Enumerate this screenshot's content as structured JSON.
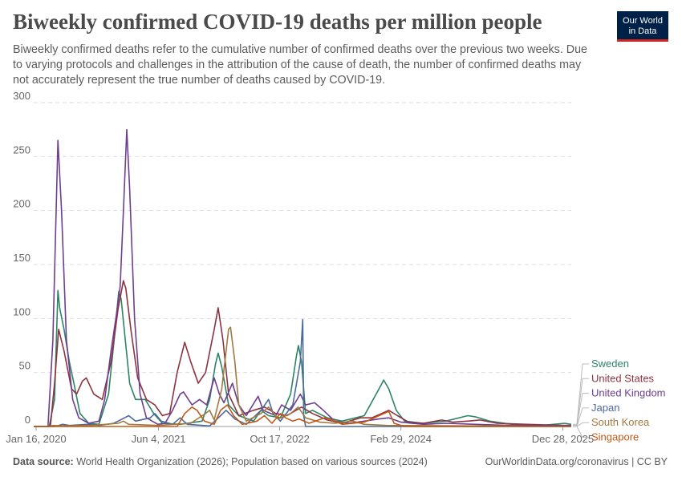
{
  "header": {
    "title": "Biweekly confirmed COVID-19 deaths per million people",
    "subtitle": "Biweekly confirmed deaths refer to the cumulative number of confirmed deaths over the previous two weeks. Due to varying protocols and challenges in the attribution of the cause of death, the number of confirmed deaths may not accurately represent the true number of deaths caused by COVID-19.",
    "logo_line1": "Our World",
    "logo_line2": "in Data"
  },
  "footer": {
    "source_label": "Data source:",
    "source_text": "World Health Organization (2026); Population based on various sources (2024)",
    "credit": "OurWorldinData.org/coronavirus | CC BY"
  },
  "chart_data": {
    "type": "line",
    "title": "Biweekly confirmed COVID-19 deaths per million people",
    "xlabel": "",
    "ylabel": "",
    "ylim": [
      0,
      300
    ],
    "xlim": [
      "2020-01-06",
      "2026-02-01"
    ],
    "y_ticks": [
      0,
      50,
      100,
      150,
      200,
      250,
      300
    ],
    "x_ticks": [
      {
        "date": "2020-01-16",
        "label": "Jan 16, 2020"
      },
      {
        "date": "2021-06-04",
        "label": "Jun 4, 2021"
      },
      {
        "date": "2022-10-17",
        "label": "Oct 17, 2022"
      },
      {
        "date": "2024-02-29",
        "label": "Feb 29, 2024"
      },
      {
        "date": "2025-12-28",
        "label": "Dec 28, 2025"
      }
    ],
    "grid": true,
    "legend_placement": "right",
    "series": [
      {
        "name": "Sweden",
        "color": "#2c8465",
        "points": [
          [
            "2020-01-06",
            0
          ],
          [
            "2020-03-10",
            0
          ],
          [
            "2020-04-01",
            25
          ],
          [
            "2020-04-15",
            126
          ],
          [
            "2020-04-22",
            110
          ],
          [
            "2020-05-10",
            90
          ],
          [
            "2020-06-01",
            60
          ],
          [
            "2020-06-20",
            40
          ],
          [
            "2020-07-15",
            12
          ],
          [
            "2020-08-20",
            3
          ],
          [
            "2020-10-01",
            2
          ],
          [
            "2020-11-10",
            30
          ],
          [
            "2020-12-05",
            85
          ],
          [
            "2020-12-22",
            125
          ],
          [
            "2021-01-01",
            118
          ],
          [
            "2021-01-18",
            80
          ],
          [
            "2021-02-05",
            40
          ],
          [
            "2021-03-01",
            25
          ],
          [
            "2021-04-10",
            25
          ],
          [
            "2021-05-15",
            12
          ],
          [
            "2021-06-20",
            3
          ],
          [
            "2021-09-01",
            2
          ],
          [
            "2021-12-01",
            5
          ],
          [
            "2022-01-01",
            25
          ],
          [
            "2022-01-25",
            58
          ],
          [
            "2022-02-05",
            68
          ],
          [
            "2022-02-20",
            55
          ],
          [
            "2022-03-20",
            20
          ],
          [
            "2022-05-01",
            10
          ],
          [
            "2022-07-01",
            5
          ],
          [
            "2022-08-01",
            15
          ],
          [
            "2022-09-01",
            10
          ],
          [
            "2022-10-20",
            8
          ],
          [
            "2022-12-01",
            30
          ],
          [
            "2022-12-25",
            65
          ],
          [
            "2023-01-02",
            75
          ],
          [
            "2023-01-15",
            60
          ],
          [
            "2023-02-01",
            12
          ],
          [
            "2023-03-01",
            15
          ],
          [
            "2023-05-01",
            8
          ],
          [
            "2023-07-01",
            5
          ],
          [
            "2023-10-01",
            10
          ],
          [
            "2023-12-01",
            35
          ],
          [
            "2023-12-20",
            43
          ],
          [
            "2024-01-10",
            35
          ],
          [
            "2024-02-10",
            15
          ],
          [
            "2024-03-15",
            5
          ],
          [
            "2024-06-01",
            3
          ],
          [
            "2024-09-01",
            5
          ],
          [
            "2024-12-01",
            10
          ],
          [
            "2025-01-01",
            9
          ],
          [
            "2025-03-01",
            5
          ],
          [
            "2025-06-01",
            2
          ],
          [
            "2025-10-01",
            1
          ],
          [
            "2026-01-05",
            3
          ],
          [
            "2026-02-01",
            2
          ]
        ]
      },
      {
        "name": "United States",
        "color": "#8c3340",
        "points": [
          [
            "2020-01-06",
            0
          ],
          [
            "2020-03-15",
            0
          ],
          [
            "2020-04-01",
            40
          ],
          [
            "2020-04-18",
            90
          ],
          [
            "2020-05-10",
            70
          ],
          [
            "2020-06-10",
            35
          ],
          [
            "2020-07-01",
            30
          ],
          [
            "2020-07-25",
            42
          ],
          [
            "2020-08-10",
            45
          ],
          [
            "2020-09-10",
            30
          ],
          [
            "2020-10-15",
            25
          ],
          [
            "2020-11-20",
            60
          ],
          [
            "2020-12-20",
            110
          ],
          [
            "2021-01-10",
            135
          ],
          [
            "2021-01-20",
            128
          ],
          [
            "2021-02-10",
            90
          ],
          [
            "2021-03-10",
            45
          ],
          [
            "2021-04-15",
            25
          ],
          [
            "2021-05-20",
            20
          ],
          [
            "2021-06-20",
            10
          ],
          [
            "2021-07-20",
            12
          ],
          [
            "2021-08-20",
            50
          ],
          [
            "2021-09-20",
            78
          ],
          [
            "2021-10-15",
            60
          ],
          [
            "2021-11-15",
            40
          ],
          [
            "2021-12-15",
            50
          ],
          [
            "2022-01-20",
            90
          ],
          [
            "2022-02-05",
            110
          ],
          [
            "2022-02-25",
            80
          ],
          [
            "2022-03-20",
            30
          ],
          [
            "2022-05-01",
            10
          ],
          [
            "2022-07-01",
            15
          ],
          [
            "2022-08-15",
            18
          ],
          [
            "2022-10-01",
            12
          ],
          [
            "2022-11-15",
            10
          ],
          [
            "2023-01-15",
            18
          ],
          [
            "2023-03-01",
            12
          ],
          [
            "2023-05-01",
            6
          ],
          [
            "2023-07-01",
            3
          ],
          [
            "2023-09-15",
            8
          ],
          [
            "2023-11-01",
            8
          ],
          [
            "2024-01-10",
            15
          ],
          [
            "2024-02-15",
            10
          ],
          [
            "2024-04-01",
            4
          ],
          [
            "2024-06-01",
            3
          ],
          [
            "2024-08-15",
            6
          ],
          [
            "2024-10-01",
            4
          ],
          [
            "2024-12-01",
            5
          ],
          [
            "2025-01-20",
            6
          ],
          [
            "2025-04-01",
            3
          ],
          [
            "2025-08-01",
            2
          ],
          [
            "2026-01-01",
            1
          ],
          [
            "2026-02-01",
            1
          ]
        ]
      },
      {
        "name": "United Kingdom",
        "color": "#6d3e91",
        "points": [
          [
            "2020-01-06",
            0
          ],
          [
            "2020-03-05",
            0
          ],
          [
            "2020-03-25",
            80
          ],
          [
            "2020-04-15",
            265
          ],
          [
            "2020-04-30",
            200
          ],
          [
            "2020-05-20",
            80
          ],
          [
            "2020-06-15",
            25
          ],
          [
            "2020-07-10",
            8
          ],
          [
            "2020-08-20",
            3
          ],
          [
            "2020-10-01",
            5
          ],
          [
            "2020-10-25",
            25
          ],
          [
            "2020-11-20",
            70
          ],
          [
            "2020-12-10",
            100
          ],
          [
            "2020-12-28",
            130
          ],
          [
            "2021-01-12",
            210
          ],
          [
            "2021-01-24",
            275
          ],
          [
            "2021-02-05",
            220
          ],
          [
            "2021-02-25",
            100
          ],
          [
            "2021-03-20",
            30
          ],
          [
            "2021-04-15",
            8
          ],
          [
            "2021-06-01",
            2
          ],
          [
            "2021-07-01",
            3
          ],
          [
            "2021-08-01",
            15
          ],
          [
            "2021-09-01",
            30
          ],
          [
            "2021-09-15",
            32
          ],
          [
            "2021-10-20",
            20
          ],
          [
            "2021-11-20",
            25
          ],
          [
            "2021-12-20",
            20
          ],
          [
            "2022-01-20",
            45
          ],
          [
            "2022-02-10",
            30
          ],
          [
            "2022-03-01",
            22
          ],
          [
            "2022-04-05",
            40
          ],
          [
            "2022-05-01",
            20
          ],
          [
            "2022-06-01",
            10
          ],
          [
            "2022-07-20",
            28
          ],
          [
            "2022-08-10",
            15
          ],
          [
            "2022-10-01",
            10
          ],
          [
            "2022-10-25",
            20
          ],
          [
            "2022-12-01",
            15
          ],
          [
            "2023-01-10",
            30
          ],
          [
            "2023-02-01",
            20
          ],
          [
            "2023-03-10",
            22
          ],
          [
            "2023-04-15",
            15
          ],
          [
            "2023-06-01",
            5
          ],
          [
            "2023-08-01",
            3
          ],
          [
            "2023-10-01",
            5
          ],
          [
            "2023-12-01",
            7
          ],
          [
            "2024-01-10",
            8
          ],
          [
            "2024-03-01",
            4
          ],
          [
            "2024-06-01",
            2
          ],
          [
            "2024-09-01",
            3
          ],
          [
            "2025-01-01",
            2
          ],
          [
            "2025-06-01",
            1
          ],
          [
            "2026-02-01",
            1
          ]
        ]
      },
      {
        "name": "Japan",
        "color": "#4c6a9c",
        "points": [
          [
            "2020-01-06",
            0
          ],
          [
            "2020-04-01",
            0
          ],
          [
            "2020-05-05",
            2
          ],
          [
            "2020-06-01",
            1
          ],
          [
            "2020-08-15",
            2
          ],
          [
            "2020-10-01",
            1
          ],
          [
            "2020-12-01",
            3
          ],
          [
            "2021-01-15",
            8
          ],
          [
            "2021-02-01",
            10
          ],
          [
            "2021-03-01",
            5
          ],
          [
            "2021-05-01",
            8
          ],
          [
            "2021-05-20",
            12
          ],
          [
            "2021-06-15",
            5
          ],
          [
            "2021-08-01",
            2
          ],
          [
            "2021-09-01",
            8
          ],
          [
            "2021-10-01",
            2
          ],
          [
            "2022-01-01",
            0.5
          ],
          [
            "2022-02-15",
            10
          ],
          [
            "2022-03-10",
            15
          ],
          [
            "2022-04-15",
            7
          ],
          [
            "2022-06-01",
            2
          ],
          [
            "2022-08-01",
            15
          ],
          [
            "2022-09-01",
            25
          ],
          [
            "2022-09-20",
            12
          ],
          [
            "2022-10-20",
            5
          ],
          [
            "2022-12-10",
            20
          ],
          [
            "2023-01-10",
            60
          ],
          [
            "2023-01-20",
            99
          ],
          [
            "2023-01-24",
            10
          ],
          [
            "2023-02-01",
            0
          ],
          [
            "2026-02-01",
            0
          ]
        ]
      },
      {
        "name": "South Korea",
        "color": "#a2793f",
        "points": [
          [
            "2020-01-06",
            0
          ],
          [
            "2020-03-10",
            0
          ],
          [
            "2020-03-25",
            1
          ],
          [
            "2020-05-01",
            0.5
          ],
          [
            "2020-09-01",
            1
          ],
          [
            "2020-12-20",
            3
          ],
          [
            "2021-01-10",
            5
          ],
          [
            "2021-02-01",
            2
          ],
          [
            "2021-06-01",
            1
          ],
          [
            "2021-10-15",
            3
          ],
          [
            "2021-12-15",
            12
          ],
          [
            "2022-01-01",
            15
          ],
          [
            "2022-01-20",
            6
          ],
          [
            "2022-02-20",
            35
          ],
          [
            "2022-03-20",
            90
          ],
          [
            "2022-03-28",
            92
          ],
          [
            "2022-04-15",
            60
          ],
          [
            "2022-05-01",
            20
          ],
          [
            "2022-06-01",
            5
          ],
          [
            "2022-08-01",
            12
          ],
          [
            "2022-09-01",
            18
          ],
          [
            "2022-10-10",
            7
          ],
          [
            "2022-12-01",
            12
          ],
          [
            "2023-01-01",
            18
          ],
          [
            "2023-02-01",
            8
          ],
          [
            "2023-04-01",
            4
          ],
          [
            "2023-06-01",
            3
          ],
          [
            "2023-08-15",
            5
          ],
          [
            "2023-10-01",
            2
          ],
          [
            "2024-01-01",
            1
          ],
          [
            "2026-02-01",
            0
          ]
        ]
      },
      {
        "name": "Singapore",
        "color": "#c05917",
        "points": [
          [
            "2020-01-06",
            0
          ],
          [
            "2021-08-20",
            0
          ],
          [
            "2021-09-20",
            12
          ],
          [
            "2021-10-20",
            18
          ],
          [
            "2021-11-10",
            15
          ],
          [
            "2021-12-10",
            5
          ],
          [
            "2022-01-20",
            2
          ],
          [
            "2022-02-15",
            15
          ],
          [
            "2022-03-15",
            20
          ],
          [
            "2022-04-10",
            10
          ],
          [
            "2022-05-15",
            2
          ],
          [
            "2022-07-15",
            5
          ],
          [
            "2022-08-15",
            10
          ],
          [
            "2022-09-15",
            3
          ],
          [
            "2022-10-20",
            12
          ],
          [
            "2022-11-10",
            8
          ],
          [
            "2022-12-10",
            5
          ],
          [
            "2023-01-05",
            7
          ],
          [
            "2023-02-15",
            3
          ],
          [
            "2023-04-20",
            8
          ],
          [
            "2023-05-25",
            6
          ],
          [
            "2023-07-01",
            2
          ],
          [
            "2023-10-01",
            4
          ],
          [
            "2023-12-01",
            10
          ],
          [
            "2024-01-10",
            14
          ],
          [
            "2024-02-01",
            3
          ],
          [
            "2024-03-15",
            0
          ],
          [
            "2026-02-01",
            0
          ]
        ]
      }
    ]
  }
}
